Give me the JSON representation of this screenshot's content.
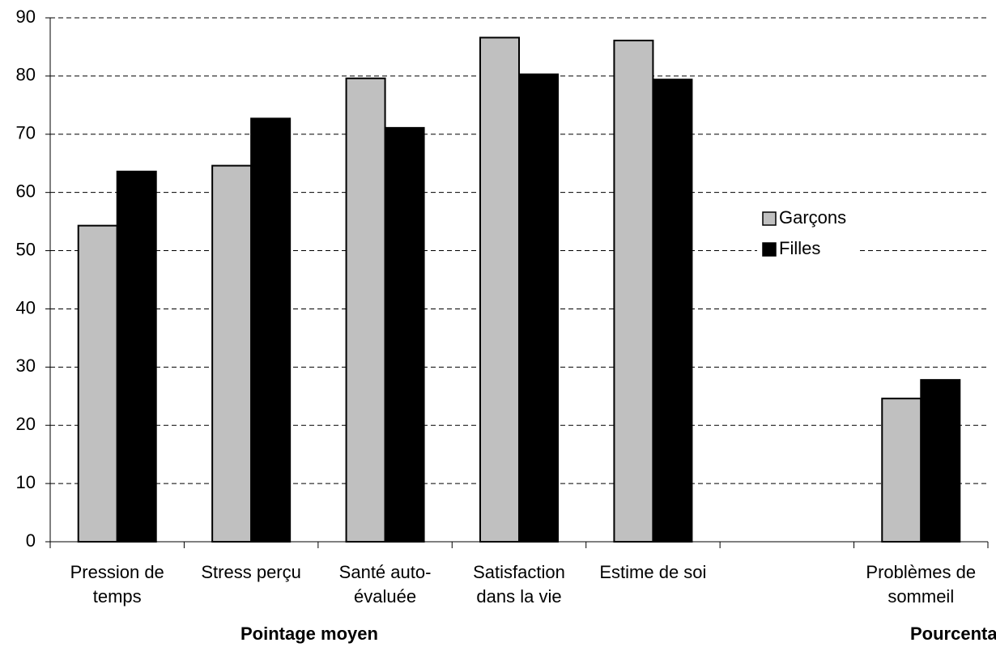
{
  "chart_data": {
    "type": "bar",
    "categories": [
      "Pression de temps",
      "Stress perçu",
      "Santé auto-évaluée",
      "Satisfaction dans la vie",
      "Estime de soi",
      null,
      "Problèmes de sommeil"
    ],
    "series": [
      {
        "name": "Garçons",
        "color": "#c0c0c0",
        "values": [
          54.3,
          64.6,
          79.6,
          86.6,
          86.1,
          null,
          24.6
        ]
      },
      {
        "name": "Filles",
        "color": "#000000",
        "values": [
          63.6,
          72.7,
          71.1,
          80.3,
          79.4,
          null,
          27.8
        ]
      }
    ],
    "ylim": [
      0,
      90
    ],
    "yticks": [
      0,
      10,
      20,
      30,
      40,
      50,
      60,
      70,
      80,
      90
    ],
    "grid": true,
    "legend": "right",
    "annotations": [
      "Pointage moyen",
      "Pourcentage"
    ]
  }
}
